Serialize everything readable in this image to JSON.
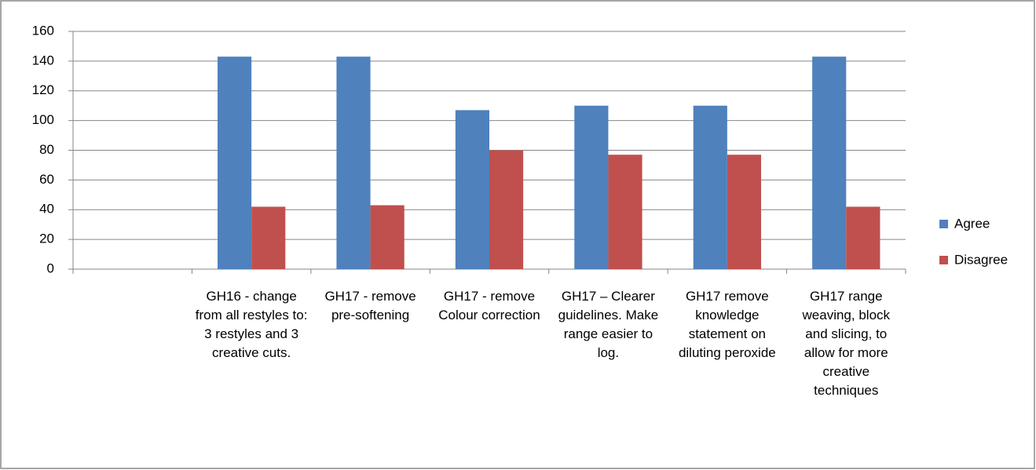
{
  "chart_data": {
    "type": "bar",
    "categories": [
      null,
      "GH16 - change from all restyles to: 3 restyles and 3 creative cuts.",
      "GH17 - remove pre-softening",
      "GH17 - remove Colour correction",
      "GH17 – Clearer guidelines. Make range easier to log.",
      "GH17 remove knowledge statement on diluting peroxide",
      "GH17 range weaving, block and slicing, to allow for more creative techniques"
    ],
    "series": [
      {
        "name": "Agree",
        "color": "#4f81bd",
        "values": [
          null,
          143,
          143,
          107,
          110,
          110,
          143
        ]
      },
      {
        "name": "Disagree",
        "color": "#c0504d",
        "values": [
          null,
          42,
          43,
          80,
          77,
          77,
          42
        ]
      }
    ],
    "ylim": [
      0,
      160
    ],
    "yticks": [
      0,
      20,
      40,
      60,
      80,
      100,
      120,
      140,
      160
    ],
    "grid": true,
    "legend": "right"
  }
}
